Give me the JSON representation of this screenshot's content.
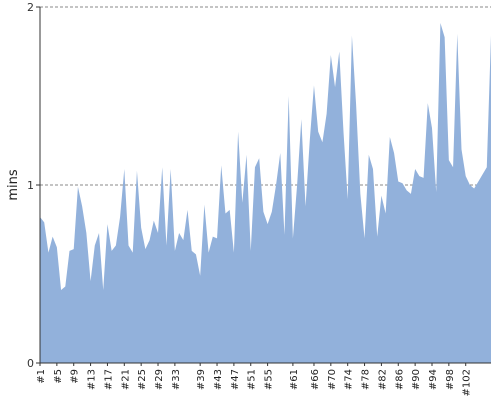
{
  "chart_data": {
    "type": "area",
    "title": "",
    "xlabel": "",
    "ylabel": "mins",
    "ylim": [
      0,
      2
    ],
    "yticks": [
      0,
      1,
      2
    ],
    "grid": true,
    "series_color": "#92b1db",
    "grid_color": "#888888",
    "x": [
      "#1",
      "#2",
      "#3",
      "#4",
      "#5",
      "#6",
      "#7",
      "#8",
      "#9",
      "#10",
      "#11",
      "#12",
      "#13",
      "#14",
      "#15",
      "#16",
      "#17",
      "#18",
      "#19",
      "#20",
      "#21",
      "#22",
      "#23",
      "#24",
      "#25",
      "#26",
      "#27",
      "#28",
      "#29",
      "#30",
      "#31",
      "#32",
      "#33",
      "#34",
      "#35",
      "#36",
      "#37",
      "#38",
      "#39",
      "#40",
      "#41",
      "#42",
      "#43",
      "#44",
      "#45",
      "#46",
      "#47",
      "#48",
      "#49",
      "#50",
      "#51",
      "#52",
      "#53",
      "#54",
      "#55",
      "#56",
      "#57",
      "#58",
      "#59",
      "#60",
      "#61",
      "#62",
      "#63",
      "#64",
      "#65",
      "#66",
      "#67",
      "#68",
      "#69",
      "#70",
      "#71",
      "#72",
      "#73",
      "#74",
      "#75",
      "#76",
      "#77",
      "#78",
      "#79",
      "#80",
      "#81",
      "#82",
      "#83",
      "#84",
      "#85",
      "#86",
      "#87",
      "#88",
      "#89",
      "#90",
      "#91",
      "#92",
      "#93",
      "#94",
      "#95",
      "#96",
      "#97",
      "#98",
      "#99",
      "#100",
      "#101",
      "#102",
      "#103",
      "#104",
      "#105",
      "#106",
      "#107",
      "#108"
    ],
    "x_tick_labels": [
      "#1",
      "#5",
      "#9",
      "#13",
      "#17",
      "#21",
      "#25",
      "#29",
      "#33",
      "#39",
      "#43",
      "#47",
      "#51",
      "#55",
      "#61",
      "#66",
      "#70",
      "#74",
      "#78",
      "#82",
      "#86",
      "#90",
      "#94",
      "#98",
      "#102"
    ],
    "values": [
      0.82,
      0.79,
      0.62,
      0.71,
      0.65,
      0.41,
      0.43,
      0.63,
      0.64,
      0.99,
      0.88,
      0.73,
      0.46,
      0.66,
      0.73,
      0.41,
      0.78,
      0.63,
      0.66,
      0.82,
      1.09,
      0.66,
      0.62,
      1.08,
      0.76,
      0.64,
      0.69,
      0.8,
      0.73,
      1.1,
      0.66,
      1.09,
      0.63,
      0.73,
      0.69,
      0.86,
      0.63,
      0.61,
      0.49,
      0.89,
      0.62,
      0.71,
      0.7,
      1.11,
      0.84,
      0.86,
      0.62,
      1.3,
      0.9,
      1.17,
      0.63,
      1.1,
      1.15,
      0.85,
      0.78,
      0.85,
      1.0,
      1.18,
      0.72,
      1.5,
      0.7,
      1.0,
      1.37,
      0.88,
      1.25,
      1.56,
      1.3,
      1.24,
      1.4,
      1.73,
      1.55,
      1.75,
      1.3,
      0.92,
      1.84,
      1.45,
      0.95,
      0.7,
      1.17,
      1.09,
      0.71,
      0.94,
      0.84,
      1.27,
      1.18,
      1.02,
      1.01,
      0.97,
      0.95,
      1.09,
      1.05,
      1.04,
      1.46,
      1.32,
      0.96,
      1.91,
      1.83,
      1.14,
      1.1,
      1.85,
      1.2,
      1.05,
      1.0,
      0.98,
      1.02,
      1.06,
      1.1,
      1.84
    ]
  }
}
